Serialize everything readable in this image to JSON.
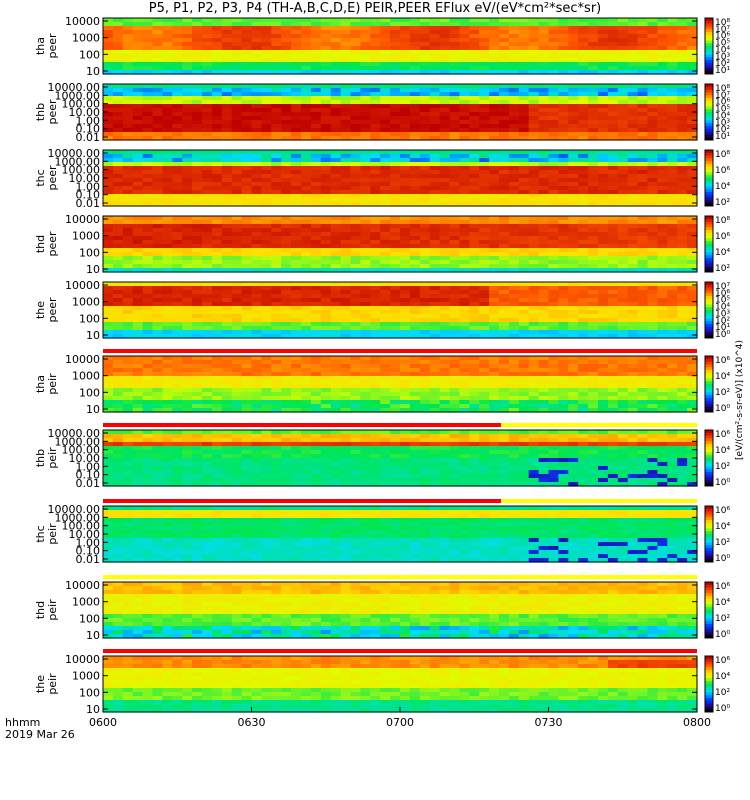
{
  "title": "P5, P1, P2, P3, P4 (TH-A,B,C,D,E) PEIR,PEER EFlux eV/(eV*cm²*sec*sr)",
  "footer": {
    "line1": "hhmm",
    "line2": "2019 Mar 26"
  },
  "colorbar_unit": "[eV/(cm²-s-sr-eV)] (x10^4)",
  "colors": {
    "high": "#c00000",
    "mid": "#ffff00",
    "low": "#0000ff",
    "floor": "#000000",
    "ephem_red": "#ff0000"
  },
  "chart_data": {
    "type": "heatmap",
    "x_ticks": [
      "0600",
      "0630",
      "0700",
      "0730",
      "0800"
    ],
    "x_range": [
      "0600",
      "0800"
    ],
    "panels": [
      {
        "id": "tha-peer",
        "ylabel": [
          "tha",
          "peer"
        ],
        "yticks": [
          "10000",
          "1000",
          "100",
          "10"
        ],
        "cbar_ticks": [
          "10⁸",
          "10⁷",
          "10⁶",
          "10⁵",
          "10⁴",
          "10³",
          "10²",
          "10¹"
        ]
      },
      {
        "id": "thb-peer",
        "ylabel": [
          "thb",
          "peer"
        ],
        "yticks": [
          "10000.00",
          "1000.00",
          "100.00",
          "10.00",
          "1.00",
          "0.10",
          "0.01"
        ],
        "cbar_ticks": [
          "10⁸",
          "10⁷",
          "10⁶",
          "10⁵",
          "10⁴",
          "10³",
          "10²",
          "10¹"
        ]
      },
      {
        "id": "thc-peer",
        "ylabel": [
          "thc",
          "peer"
        ],
        "yticks": [
          "10000.00",
          "1000.00",
          "100.00",
          "10.00",
          "1.00",
          "0.10",
          "0.01"
        ],
        "cbar_ticks": [
          "10⁸",
          "10⁶",
          "10⁴",
          "10²"
        ]
      },
      {
        "id": "thd-peer",
        "ylabel": [
          "thd",
          "peer"
        ],
        "yticks": [
          "10000",
          "1000",
          "100",
          "10"
        ],
        "cbar_ticks": [
          "10⁸",
          "10⁶",
          "10⁴",
          "10²"
        ]
      },
      {
        "id": "the-peer",
        "ylabel": [
          "the",
          "peer"
        ],
        "yticks": [
          "10000",
          "1000",
          "100",
          "10"
        ],
        "cbar_ticks": [
          "10⁷",
          "10⁶",
          "10⁵",
          "10⁴",
          "10³",
          "10²",
          "10¹",
          "10⁰"
        ]
      },
      {
        "id": "tha-peir",
        "ylabel": [
          "tha",
          "peir"
        ],
        "yticks": [
          "10000",
          "1000",
          "100",
          "10"
        ],
        "cbar_ticks": [
          "10⁶",
          "10⁴",
          "10²",
          "10⁰"
        ]
      },
      {
        "id": "thb-peir",
        "ylabel": [
          "thb",
          "peir"
        ],
        "yticks": [
          "10000.00",
          "1000.00",
          "100.00",
          "10.00",
          "1.00",
          "0.10",
          "0.01"
        ],
        "cbar_ticks": [
          "10⁶",
          "10⁴",
          "10²",
          "10⁰"
        ]
      },
      {
        "id": "thc-peir",
        "ylabel": [
          "thc",
          "peir"
        ],
        "yticks": [
          "10000.00",
          "1000.00",
          "100.00",
          "10.00",
          "1.00",
          "0.10",
          "0.01"
        ],
        "cbar_ticks": [
          "10⁶",
          "10⁴",
          "10²",
          "10⁰"
        ]
      },
      {
        "id": "thd-peir",
        "ylabel": [
          "thd",
          "peir"
        ],
        "yticks": [
          "10000",
          "1000",
          "100",
          "10"
        ],
        "cbar_ticks": [
          "10⁶",
          "10⁴",
          "10²",
          "10⁰"
        ]
      },
      {
        "id": "the-peir",
        "ylabel": [
          "the",
          "peir"
        ],
        "yticks": [
          "10000",
          "1000",
          "100",
          "10"
        ],
        "cbar_ticks": [
          "10⁶",
          "10⁴",
          "10²",
          "10⁰"
        ]
      }
    ]
  }
}
